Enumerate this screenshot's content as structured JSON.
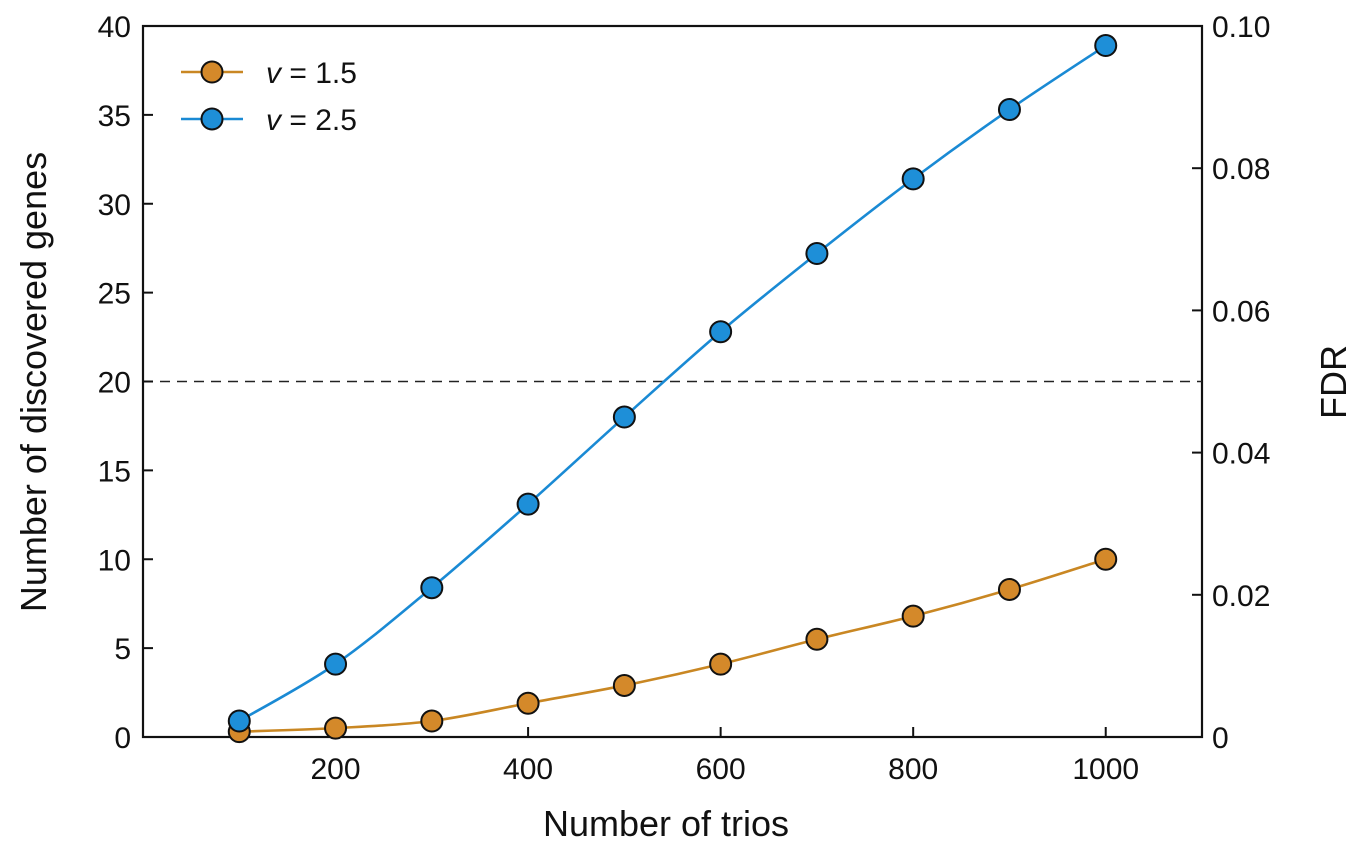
{
  "chart_data": {
    "type": "line",
    "x": [
      100,
      200,
      300,
      400,
      500,
      600,
      700,
      800,
      900,
      1000
    ],
    "series": [
      {
        "name": "v = 1.5",
        "var": "v",
        "rest": " = 1.5",
        "color": "#D4892A",
        "line_color": "#C98723",
        "values": [
          0.3,
          0.5,
          0.9,
          1.9,
          2.9,
          4.1,
          5.5,
          6.8,
          8.3,
          10.0
        ]
      },
      {
        "name": "v = 2.5",
        "var": "v",
        "rest": " = 2.5",
        "color": "#1E8FD8",
        "line_color": "#1A8AD4",
        "values": [
          0.9,
          4.1,
          8.4,
          13.1,
          18.0,
          22.8,
          27.2,
          31.4,
          35.3,
          38.9
        ]
      }
    ],
    "xlabel": "Number of trios",
    "ylabel": "Number of discovered genes",
    "y2label": "FDR",
    "xlim": [
      0,
      1100
    ],
    "ylim": [
      0,
      40
    ],
    "y2lim": [
      0,
      0.1
    ],
    "xticks": [
      "200",
      "400",
      "600",
      "800",
      "1000"
    ],
    "yticks": [
      "0",
      "5",
      "10",
      "15",
      "20",
      "25",
      "30",
      "35",
      "40"
    ],
    "y2ticks": [
      "0",
      "0.02",
      "0.04",
      "0.06",
      "0.08",
      "0.10"
    ],
    "reference_line": {
      "y": 20,
      "style": "dashed",
      "color": "#222222"
    },
    "grid": false,
    "legend_position": "top-left"
  }
}
